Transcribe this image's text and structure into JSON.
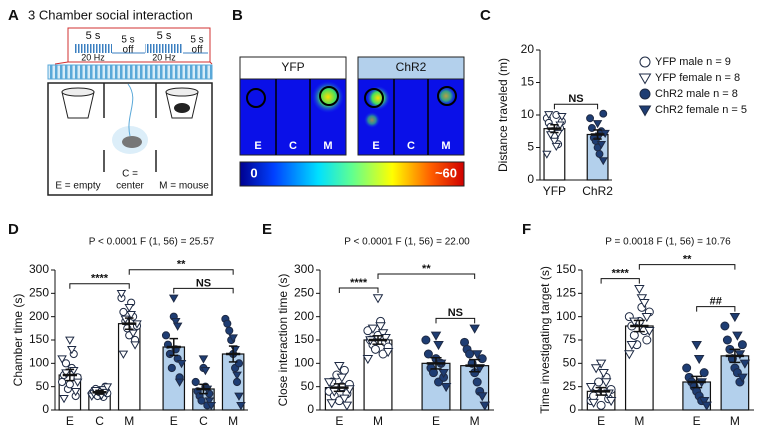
{
  "panel_a": {
    "letter": "A",
    "title": "3 Chamber social interaction",
    "on": "5 s",
    "freq": "20 Hz",
    "off": [
      "5 s",
      "off"
    ],
    "labels": [
      "E = empty",
      "C =",
      "center",
      "M = mouse"
    ]
  },
  "panel_b": {
    "letter": "B",
    "headers": [
      "YFP",
      "ChR2"
    ],
    "zones": [
      "E",
      "C",
      "M"
    ],
    "scale": [
      "0",
      "~60"
    ]
  },
  "chart_data": [
    {
      "type": "bar",
      "panel": "C",
      "ylabel": "Distance traveled (m)",
      "ylim": [
        0,
        20
      ],
      "yticks": [
        0,
        5,
        10,
        15,
        20
      ],
      "legend": [
        {
          "name": "YFP male n = 9",
          "color": "#ffffff",
          "marker": "circle"
        },
        {
          "name": "YFP female n = 8",
          "color": "#ffffff",
          "marker": "triangle"
        },
        {
          "name": "ChR2 male n = 8",
          "color": "#1e3d73",
          "marker": "circle"
        },
        {
          "name": "ChR2 female n = 5",
          "color": "#1e3d73",
          "marker": "triangle"
        }
      ],
      "bars": [
        {
          "category": "YFP",
          "value": 7.9,
          "error": 0.6,
          "color": "#ffffff",
          "point_color": "#ffffff",
          "male": [
            9.5,
            8.8,
            8.2,
            7.5,
            6.8,
            10.0,
            5.5,
            8.0,
            9.0
          ],
          "female": [
            6.0,
            5.2,
            7.2,
            8.5,
            9.8,
            4.0,
            10.1,
            7.0
          ]
        },
        {
          "category": "ChR2",
          "value": 7.0,
          "error": 0.7,
          "color": "#b3d0ec",
          "point_color": "#1e3d73",
          "male": [
            9.5,
            8.0,
            6.5,
            6.0,
            5.0,
            4.0,
            7.5,
            10.2
          ],
          "female": [
            8.7,
            6.8,
            5.5,
            3.0,
            7.2
          ]
        }
      ],
      "brackets": [
        {
          "from": 0,
          "to": 1,
          "label": "NS"
        }
      ]
    },
    {
      "type": "bar",
      "panel": "D",
      "stats": "P < 0.0001   F (1, 56) = 25.57",
      "ylabel": "Chamber time (s)",
      "ylim": [
        0,
        300
      ],
      "yticks": [
        0,
        50,
        100,
        150,
        200,
        250,
        300
      ],
      "bars": [
        {
          "category": "E",
          "value": 75,
          "error": 12,
          "color": "#ffffff",
          "point_color": "#ffffff",
          "male": [
            60,
            75,
            100,
            45,
            55,
            90,
            120,
            30,
            70
          ],
          "female": [
            150,
            130,
            85,
            40,
            60,
            110,
            25,
            80
          ]
        },
        {
          "category": "C",
          "value": 38,
          "error": 4,
          "color": "#ffffff",
          "point_color": "#ffffff",
          "male": [
            35,
            40,
            45,
            30,
            38,
            42,
            28,
            50,
            36
          ],
          "female": [
            40,
            32,
            44,
            38,
            50,
            30,
            36,
            42
          ]
        },
        {
          "category": "M",
          "value": 185,
          "error": 12,
          "color": "#ffffff",
          "point_color": "#ffffff",
          "male": [
            240,
            210,
            190,
            175,
            160,
            230,
            200,
            150,
            180
          ],
          "female": [
            220,
            205,
            165,
            140,
            185,
            250,
            120,
            195
          ]
        },
        {
          "category": "E",
          "value": 135,
          "error": 18,
          "color": "#b3d0ec",
          "point_color": "#1e3d73",
          "male": [
            160,
            140,
            120,
            90,
            200,
            130,
            110,
            70
          ],
          "female": [
            240,
            190,
            180,
            60,
            100
          ]
        },
        {
          "category": "C",
          "value": 45,
          "error": 10,
          "color": "#b3d0ec",
          "point_color": "#1e3d73",
          "male": [
            60,
            40,
            30,
            20,
            90,
            50,
            10,
            35
          ],
          "female": [
            110,
            85,
            45,
            20,
            10
          ]
        },
        {
          "category": "M",
          "value": 120,
          "error": 17,
          "color": "#b3d0ec",
          "point_color": "#1e3d73",
          "male": [
            195,
            185,
            170,
            150,
            120,
            90,
            60,
            100
          ],
          "female": [
            155,
            130,
            75,
            30,
            10
          ]
        }
      ],
      "brackets": [
        {
          "from": 0,
          "to": 2,
          "label": "****"
        },
        {
          "from": 3,
          "to": 5,
          "label": "NS"
        },
        {
          "from": 2,
          "to": 5,
          "label": "**"
        }
      ]
    },
    {
      "type": "bar",
      "panel": "E",
      "stats": "P < 0.0001   F (1, 56) = 22.00",
      "ylabel": "Close interaction time (s)",
      "ylim": [
        0,
        300
      ],
      "yticks": [
        0,
        50,
        100,
        150,
        200,
        250,
        300
      ],
      "bars": [
        {
          "category": "E",
          "value": 48,
          "error": 8,
          "color": "#ffffff",
          "point_color": "#ffffff",
          "male": [
            40,
            60,
            30,
            75,
            20,
            50,
            85,
            35,
            55
          ],
          "female": [
            95,
            70,
            25,
            10,
            45,
            60,
            15,
            40
          ]
        },
        {
          "category": "M",
          "value": 150,
          "error": 9,
          "color": "#ffffff",
          "point_color": "#ffffff",
          "male": [
            170,
            150,
            140,
            130,
            160,
            190,
            120,
            145,
            135
          ],
          "female": [
            240,
            180,
            165,
            155,
            125,
            110,
            150,
            175
          ]
        },
        {
          "category": "E",
          "value": 100,
          "error": 12,
          "color": "#b3d0ec",
          "point_color": "#1e3d73",
          "male": [
            150,
            120,
            90,
            80,
            110,
            60,
            100,
            70
          ],
          "female": [
            160,
            140,
            100,
            80,
            50
          ]
        },
        {
          "category": "M",
          "value": 95,
          "error": 13,
          "color": "#b3d0ec",
          "point_color": "#1e3d73",
          "male": [
            145,
            130,
            120,
            100,
            80,
            60,
            40,
            110
          ],
          "female": [
            175,
            120,
            90,
            30,
            10
          ]
        }
      ],
      "brackets": [
        {
          "from": 0,
          "to": 1,
          "label": "****"
        },
        {
          "from": 2,
          "to": 3,
          "label": "NS"
        },
        {
          "from": 1,
          "to": 3,
          "label": "**"
        }
      ]
    },
    {
      "type": "bar",
      "panel": "F",
      "stats": "P = 0.0018   F (1, 56) = 10.76",
      "ylabel": "Time investigating target (s)",
      "ylim": [
        0,
        150
      ],
      "yticks": [
        0,
        25,
        50,
        75,
        100,
        125,
        150
      ],
      "bars": [
        {
          "category": "E",
          "value": 20,
          "error": 4,
          "color": "#ffffff",
          "point_color": "#ffffff",
          "male": [
            10,
            15,
            25,
            30,
            5,
            20,
            35,
            12,
            22
          ],
          "female": [
            50,
            40,
            30,
            18,
            10,
            25,
            8,
            45
          ]
        },
        {
          "category": "M",
          "value": 90,
          "error": 6,
          "color": "#ffffff",
          "point_color": "#ffffff",
          "male": [
            100,
            90,
            80,
            70,
            95,
            110,
            85,
            75,
            105
          ],
          "female": [
            130,
            120,
            115,
            100,
            85,
            60,
            70,
            95
          ]
        },
        {
          "category": "E",
          "value": 30,
          "error": 6,
          "color": "#b3d0ec",
          "point_color": "#1e3d73",
          "male": [
            45,
            35,
            30,
            25,
            20,
            15,
            10,
            40
          ],
          "female": [
            70,
            55,
            30,
            10,
            5
          ]
        },
        {
          "category": "M",
          "value": 58,
          "error": 7,
          "color": "#b3d0ec",
          "point_color": "#1e3d73",
          "male": [
            90,
            75,
            65,
            55,
            45,
            40,
            30,
            70
          ],
          "female": [
            100,
            80,
            60,
            35,
            50
          ]
        }
      ],
      "brackets": [
        {
          "from": 0,
          "to": 1,
          "label": "****"
        },
        {
          "from": 2,
          "to": 3,
          "label": "##"
        },
        {
          "from": 1,
          "to": 3,
          "label": "**"
        }
      ]
    }
  ]
}
